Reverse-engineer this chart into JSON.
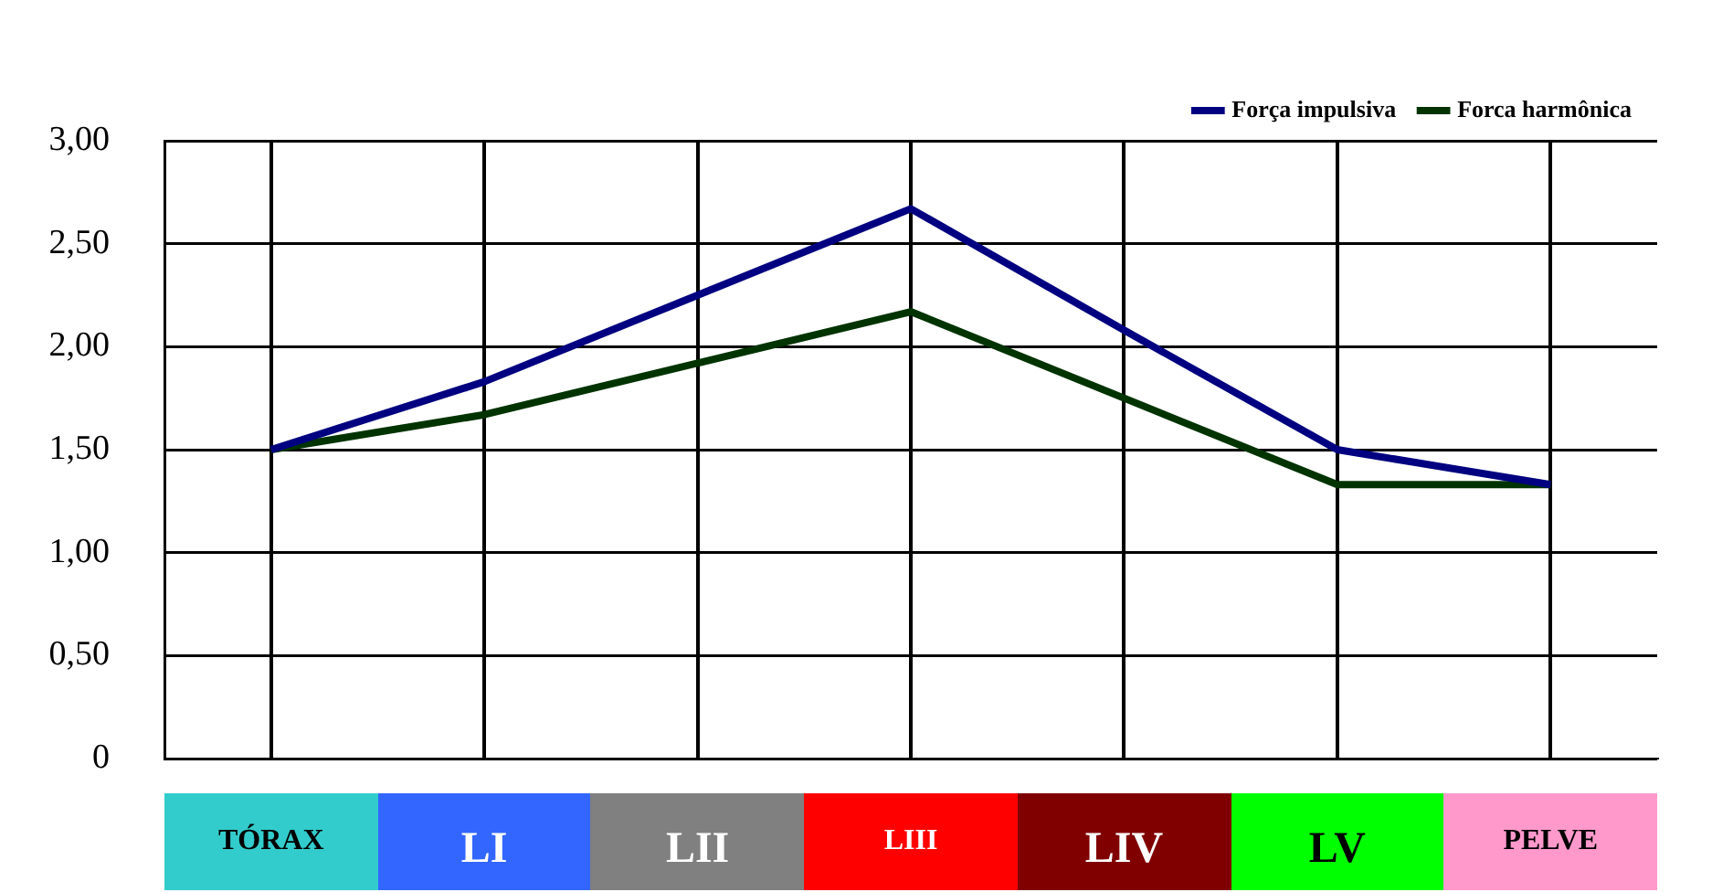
{
  "chart_data": {
    "type": "line",
    "categories": [
      "TÓRAX",
      "LI",
      "LII",
      "LIII",
      "LIV",
      "LV",
      "PELVE"
    ],
    "series": [
      {
        "name": "Força impulsiva",
        "color": "#000080",
        "values": [
          1.5,
          1.83,
          2.25,
          2.67,
          2.08,
          1.5,
          1.33
        ]
      },
      {
        "name": "Forca harmônica",
        "color": "#003300",
        "values": [
          1.5,
          1.67,
          1.92,
          2.17,
          1.75,
          1.33,
          1.33
        ]
      }
    ],
    "ylim": [
      0,
      3
    ],
    "yticks": [
      0,
      {
        "value": 0.5,
        "label": "0,50"
      },
      {
        "value": 1,
        "label": "1,00"
      },
      {
        "value": 1.5,
        "label": "1,50"
      },
      {
        "value": 2,
        "label": "2,00"
      },
      {
        "value": 2.5,
        "label": "2,50"
      },
      {
        "value": 3,
        "label": "3,00"
      }
    ],
    "grid": true,
    "legend": "top right",
    "marker": "none",
    "line_style": "solid"
  }
}
